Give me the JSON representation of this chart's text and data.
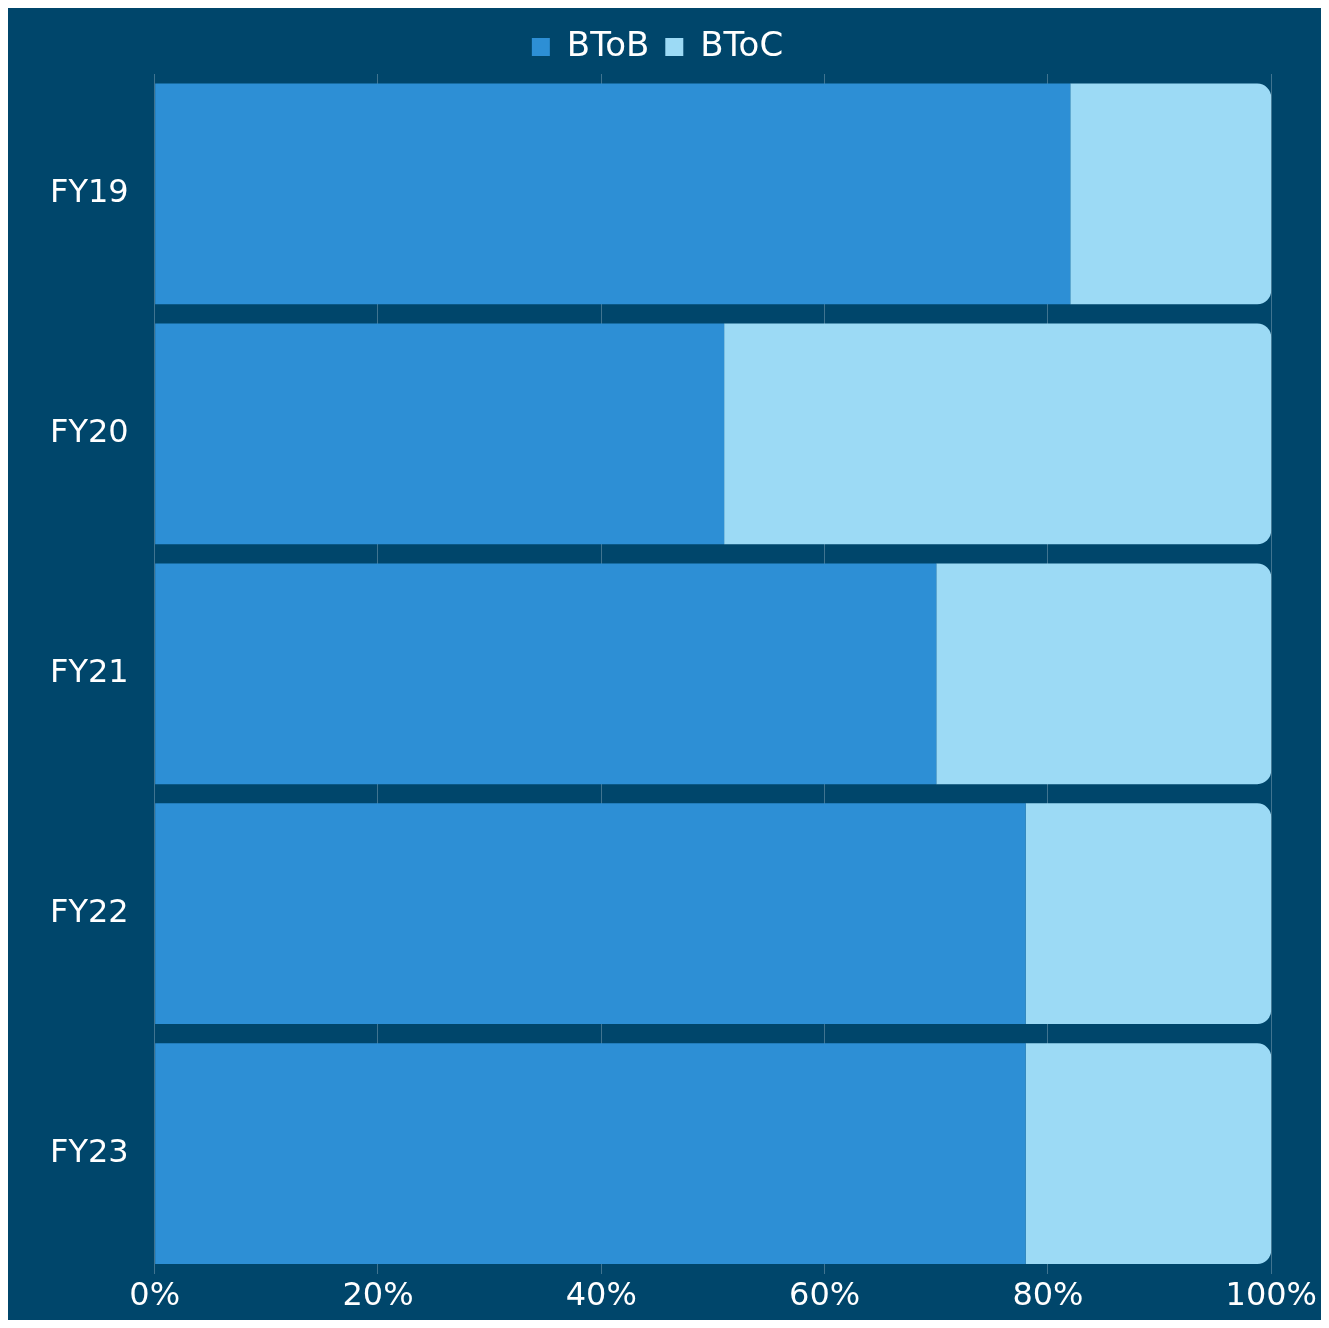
{
  "chart_data": {
    "type": "bar",
    "orientation": "horizontal",
    "stacked": true,
    "categories": [
      "FY19",
      "FY20",
      "FY21",
      "FY22",
      "FY23"
    ],
    "series": [
      {
        "name": "BToB",
        "color": "#2d8fd5",
        "values": [
          82,
          51,
          70,
          78,
          78
        ]
      },
      {
        "name": "BToC",
        "color": "#9cdaf5",
        "values": [
          18,
          49,
          30,
          22,
          22
        ]
      }
    ],
    "xlim": [
      0,
      100
    ],
    "xticks": [
      {
        "value": 0,
        "label": "0%"
      },
      {
        "value": 20,
        "label": "20%"
      },
      {
        "value": 40,
        "label": "40%"
      },
      {
        "value": 60,
        "label": "60%"
      },
      {
        "value": 80,
        "label": "80%"
      },
      {
        "value": 100,
        "label": "100%"
      }
    ],
    "grid": "x",
    "legend": "top"
  }
}
